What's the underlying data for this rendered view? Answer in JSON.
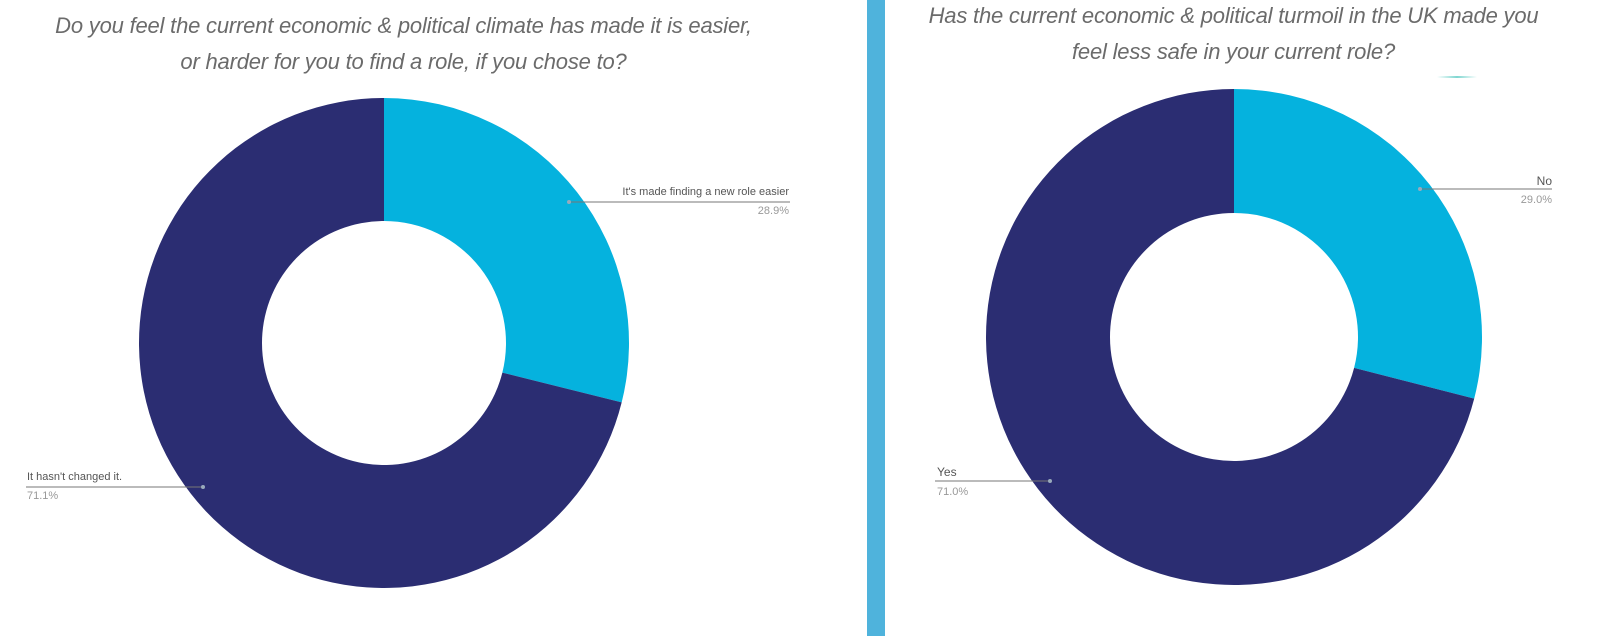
{
  "chart_data": [
    {
      "type": "pie",
      "subtype": "donut",
      "title": "Do you feel the current economic & political climate has made it is easier, or harder for you to find a role, if you chose to?",
      "title_lines": [
        "Do you feel the current economic & political climate has made it is easier,",
        "or harder for you to find a role, if you chose to?"
      ],
      "categories": [
        "It's made finding a new role easier",
        "It hasn't changed it."
      ],
      "values": [
        28.9,
        71.1
      ],
      "labels": [
        "28.9%",
        "71.1%"
      ],
      "colors": [
        "#05b2de",
        "#2b2d72"
      ],
      "legend": "none (callout labels)"
    },
    {
      "type": "pie",
      "subtype": "donut",
      "title": "Has the current economic & political turmoil in the UK made you feel less safe in your current role?",
      "title_lines": [
        "Has the current economic & political turmoil in the UK made you",
        "feel less safe in your current role?"
      ],
      "categories": [
        "No",
        "Yes"
      ],
      "values": [
        29.0,
        71.0
      ],
      "labels": [
        "29.0%",
        "71.0%"
      ],
      "colors": [
        "#05b2de",
        "#2b2d72"
      ],
      "legend": "none (callout labels)"
    }
  ],
  "left": {
    "title_line1": "Do you feel the current economic & political climate has made it is easier,",
    "title_line2": "or harder for you to find a role, if you chose to?",
    "slice_a_label": "It's made finding a new role easier",
    "slice_a_pct": "28.9%",
    "slice_b_label": "It hasn't changed it.",
    "slice_b_pct": "71.1%"
  },
  "right": {
    "title_line1": "Has the current economic & political turmoil in the UK made you",
    "title_line2": "feel less safe in your current role?",
    "slice_a_label": "No",
    "slice_a_pct": "29.0%",
    "slice_b_label": "Yes",
    "slice_b_pct": "71.0%"
  },
  "colors": {
    "primary": "#2b2d72",
    "secondary": "#05b2de",
    "divider": "#4fb3dc"
  }
}
